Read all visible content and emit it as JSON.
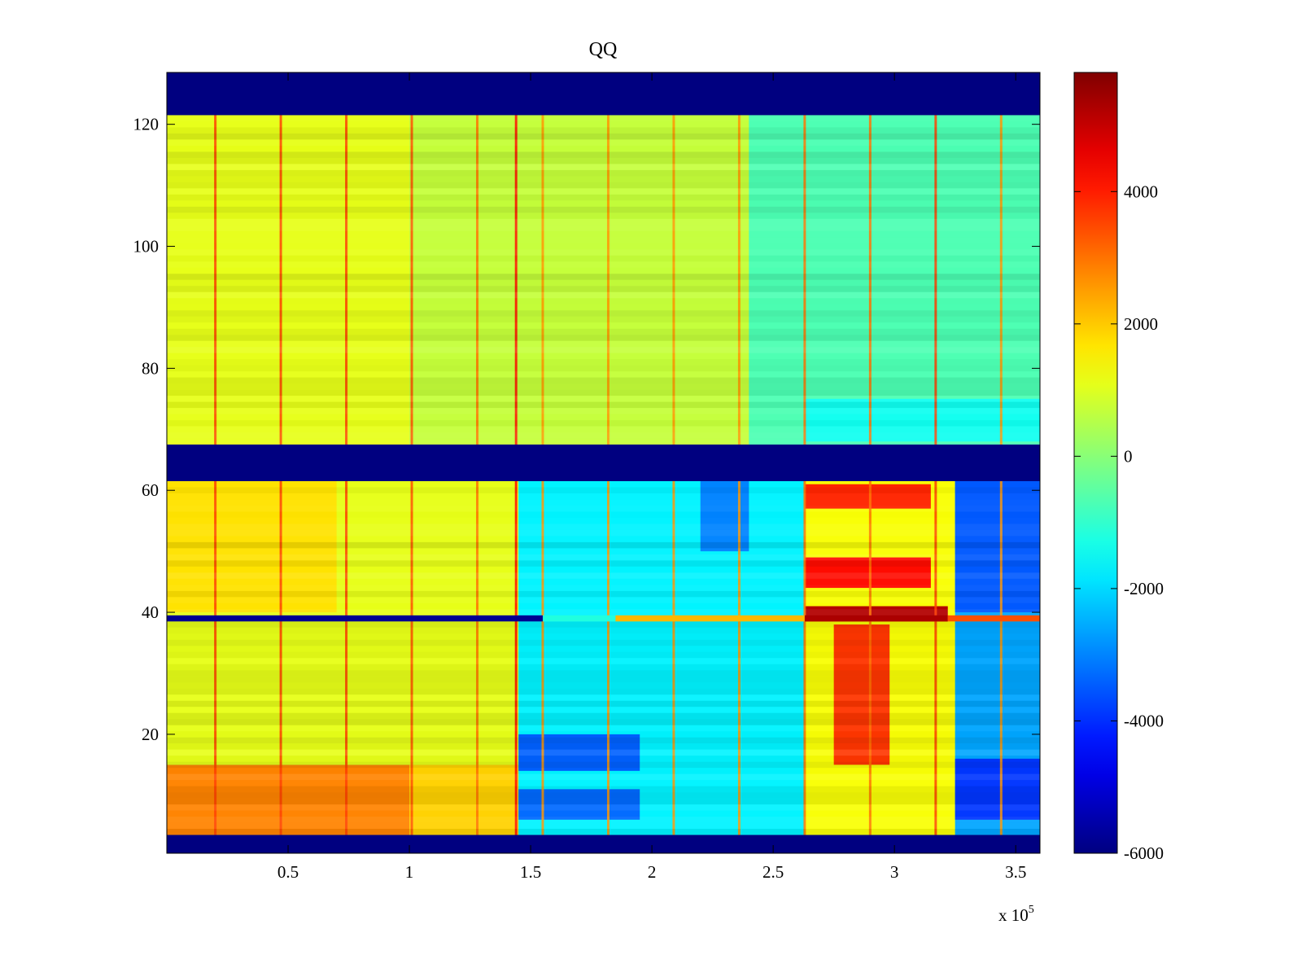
{
  "chart_data": {
    "type": "heatmap",
    "title": "QQ",
    "xlabel": "",
    "ylabel": "",
    "x_exponent_label": {
      "base": "x 10",
      "exponent": "5"
    },
    "xlim": [
      0,
      3.6
    ],
    "ylim": [
      0.5,
      128.5
    ],
    "xticks": [
      {
        "value": 0.5,
        "label": "0.5"
      },
      {
        "value": 1,
        "label": "1"
      },
      {
        "value": 1.5,
        "label": "1.5"
      },
      {
        "value": 2,
        "label": "2"
      },
      {
        "value": 2.5,
        "label": "2.5"
      },
      {
        "value": 3,
        "label": "3"
      },
      {
        "value": 3.5,
        "label": "3.5"
      }
    ],
    "yticks": [
      {
        "value": 20,
        "label": "20"
      },
      {
        "value": 40,
        "label": "40"
      },
      {
        "value": 60,
        "label": "60"
      },
      {
        "value": 80,
        "label": "80"
      },
      {
        "value": 100,
        "label": "100"
      },
      {
        "value": 120,
        "label": "120"
      }
    ],
    "colorbar": {
      "colormap": "jet",
      "clim": [
        -6000,
        5800
      ],
      "ticks": [
        {
          "value": -6000,
          "label": "-6000"
        },
        {
          "value": -4000,
          "label": "-4000"
        },
        {
          "value": -2000,
          "label": "-2000"
        },
        {
          "value": 0,
          "label": "0"
        },
        {
          "value": 2000,
          "label": "2000"
        },
        {
          "value": 4000,
          "label": "4000"
        }
      ]
    },
    "masked_row_ranges": [
      [
        121.5,
        128.5
      ],
      [
        61.5,
        67.5
      ],
      [
        0.5,
        3.5
      ]
    ],
    "masked_value": -6000,
    "regions": [
      {
        "x": [
          0,
          1.5
        ],
        "y": [
          3.5,
          15
        ],
        "value": 2800
      },
      {
        "x": [
          1.0,
          1.45
        ],
        "y": [
          3.5,
          15
        ],
        "value": 1900
      },
      {
        "x": [
          0,
          1.45
        ],
        "y": [
          15,
          61.5
        ],
        "value": 1100
      },
      {
        "x": [
          0,
          0.7
        ],
        "y": [
          40,
          61.5
        ],
        "value": 1700
      },
      {
        "x": [
          1.45,
          2.63
        ],
        "y": [
          3.5,
          61.5
        ],
        "value": -1700
      },
      {
        "x": [
          1.45,
          1.95
        ],
        "y": [
          14,
          20
        ],
        "value": -3400
      },
      {
        "x": [
          1.45,
          1.95
        ],
        "y": [
          6,
          11
        ],
        "value": -3300
      },
      {
        "x": [
          2.2,
          2.4
        ],
        "y": [
          50,
          61.5
        ],
        "value": -3000
      },
      {
        "x": [
          2.63,
          3.25
        ],
        "y": [
          3.5,
          61.5
        ],
        "value": 1300
      },
      {
        "x": [
          2.75,
          2.98
        ],
        "y": [
          15,
          38
        ],
        "value": 3700
      },
      {
        "x": [
          2.63,
          3.15
        ],
        "y": [
          44,
          49
        ],
        "value": 4200
      },
      {
        "x": [
          2.63,
          3.15
        ],
        "y": [
          57,
          61
        ],
        "value": 3900
      },
      {
        "x": [
          2.63,
          3.22
        ],
        "y": [
          38.5,
          41
        ],
        "value": 5200
      },
      {
        "x": [
          3.25,
          3.6
        ],
        "y": [
          3.5,
          61.5
        ],
        "value": -2600
      },
      {
        "x": [
          3.25,
          3.6
        ],
        "y": [
          40,
          61.5
        ],
        "value": -3500
      },
      {
        "x": [
          3.25,
          3.6
        ],
        "y": [
          6,
          16
        ],
        "value": -3900
      },
      {
        "x": [
          0,
          2.4
        ],
        "y": [
          67.5,
          121.5
        ],
        "value": 700
      },
      {
        "x": [
          0,
          1.0
        ],
        "y": [
          67.5,
          121.5
        ],
        "value": 1100
      },
      {
        "x": [
          2.4,
          3.6
        ],
        "y": [
          67.5,
          121.5
        ],
        "value": -700
      },
      {
        "x": [
          2.63,
          3.6
        ],
        "y": [
          68,
          75
        ],
        "value": -1400
      }
    ],
    "line_row": {
      "y": 39,
      "segments": [
        {
          "x": [
            0,
            1.55
          ],
          "value": -5800
        },
        {
          "x": [
            1.55,
            1.85
          ],
          "value": -1200
        },
        {
          "x": [
            1.85,
            2.63
          ],
          "value": 2200
        },
        {
          "x": [
            2.63,
            3.22
          ],
          "value": 5300
        },
        {
          "x": [
            3.22,
            3.6
          ],
          "value": 3400
        }
      ]
    },
    "vertical_streaks": [
      {
        "x": 0.2,
        "value": 3600
      },
      {
        "x": 0.47,
        "value": 3600
      },
      {
        "x": 0.74,
        "value": 3600
      },
      {
        "x": 1.01,
        "value": 3400
      },
      {
        "x": 1.28,
        "value": 3000
      },
      {
        "x": 1.44,
        "value": 4200
      },
      {
        "x": 1.55,
        "value": 2600
      },
      {
        "x": 1.82,
        "value": 2600
      },
      {
        "x": 2.09,
        "value": 2600
      },
      {
        "x": 2.36,
        "value": 2600
      },
      {
        "x": 2.63,
        "value": 3000
      },
      {
        "x": 2.9,
        "value": 3000
      },
      {
        "x": 3.17,
        "value": 3600
      },
      {
        "x": 3.44,
        "value": 2600
      }
    ]
  }
}
